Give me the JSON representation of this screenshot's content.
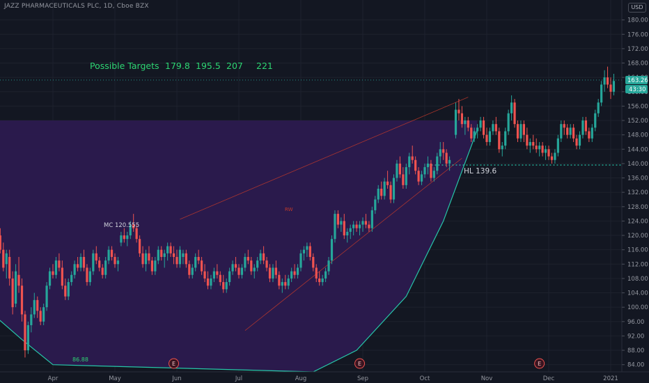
{
  "header": {
    "title": "JAZZ PHARMACEUTICALS PLC, 1D, Cboe BZX",
    "currency": "USD"
  },
  "colors": {
    "background": "#131722",
    "grid": "#1e222d",
    "up": "#26a69a",
    "down": "#ef5350",
    "zone_fill": "#2b1a4f",
    "curve": "#26c6a8",
    "wedge": "#c0392b",
    "targets_text": "#2ed573",
    "label_text": "#d1d4dc",
    "price_badge": "#26a69a"
  },
  "annotations": {
    "targets_label": "Possible Targets",
    "targets": [
      "179.8",
      "195.5",
      "207",
      "221"
    ],
    "mc_label": "MC 120.555",
    "rw_label": "RW",
    "hl_label": "HL 139.6",
    "low_label": "86.88",
    "earnings_marker": "E"
  },
  "price_badges": {
    "last": "163.26",
    "countdown": "43:30"
  },
  "chart_data": {
    "type": "candlestick",
    "title": "JAZZ PHARMACEUTICALS PLC, 1D, Cboe BZX",
    "ylim": [
      82,
      184
    ],
    "y_ticks": [
      84,
      88,
      92,
      96,
      100,
      104,
      108,
      112,
      116,
      120,
      124,
      128,
      132,
      136,
      140,
      144,
      148,
      152,
      156,
      160,
      164,
      168,
      172,
      176,
      180
    ],
    "x_ticks": [
      "Apr",
      "May",
      "Jun",
      "Jul",
      "Aug",
      "Sep",
      "Oct",
      "Nov",
      "Dec",
      "2021"
    ],
    "current_price": 163.26,
    "hl_level": 139.6,
    "targets": [
      179.8,
      195.5,
      207,
      221
    ],
    "earnings_month_positions": [
      1.95,
      4.95,
      7.85
    ],
    "wedge_upper": [
      [
        2.05,
        124.5
      ],
      [
        6.7,
        158.5
      ]
    ],
    "wedge_lower": [
      [
        3.1,
        93.5
      ],
      [
        6.6,
        141.5
      ]
    ],
    "zone_top": 152,
    "curve": [
      [
        -0.9,
        97
      ],
      [
        -0.5,
        91
      ],
      [
        0,
        84
      ],
      [
        4.2,
        82
      ],
      [
        4.9,
        88
      ],
      [
        5.7,
        103
      ],
      [
        6.3,
        124
      ],
      [
        6.85,
        149.5
      ]
    ],
    "candles": [
      [
        -0.9,
        123,
        125,
        119,
        120
      ],
      [
        -0.85,
        120,
        122,
        115,
        116
      ],
      [
        -0.8,
        116,
        118,
        110,
        111
      ],
      [
        -0.75,
        112,
        116,
        108,
        115
      ],
      [
        -0.7,
        114,
        116,
        106,
        108
      ],
      [
        -0.65,
        108,
        110,
        98,
        100
      ],
      [
        -0.6,
        101,
        112,
        100,
        110
      ],
      [
        -0.55,
        109,
        114,
        104,
        106
      ],
      [
        -0.5,
        106,
        108,
        96,
        98
      ],
      [
        -0.45,
        98,
        99,
        86,
        88
      ],
      [
        -0.4,
        88,
        96,
        87,
        95
      ],
      [
        -0.35,
        95,
        100,
        93,
        98
      ],
      [
        -0.3,
        98,
        104,
        97,
        102
      ],
      [
        -0.25,
        102,
        103,
        97,
        99
      ],
      [
        -0.2,
        99,
        100,
        95,
        96
      ],
      [
        -0.15,
        96,
        101,
        95,
        100
      ],
      [
        -0.1,
        100,
        107,
        99,
        106
      ],
      [
        -0.05,
        106,
        111,
        105,
        110
      ],
      [
        0.0,
        110,
        112,
        108,
        109
      ],
      [
        0.05,
        109,
        114,
        108,
        113
      ],
      [
        0.1,
        113,
        115,
        110,
        111
      ],
      [
        0.15,
        111,
        113,
        105,
        106
      ],
      [
        0.2,
        106,
        108,
        102,
        103
      ],
      [
        0.25,
        103,
        108,
        102,
        107
      ],
      [
        0.3,
        107,
        110,
        106,
        109
      ],
      [
        0.35,
        109,
        113,
        108,
        112
      ],
      [
        0.4,
        112,
        114,
        110,
        111
      ],
      [
        0.45,
        111,
        115,
        110,
        114
      ],
      [
        0.5,
        114,
        116,
        110,
        111
      ],
      [
        0.55,
        111,
        112,
        106,
        107
      ],
      [
        0.6,
        107,
        111,
        106,
        110
      ],
      [
        0.65,
        110,
        116,
        109,
        115
      ],
      [
        0.7,
        115,
        117,
        112,
        113
      ],
      [
        0.75,
        113,
        114,
        110,
        111
      ],
      [
        0.8,
        111,
        112,
        108,
        109
      ],
      [
        0.85,
        109,
        114,
        108,
        113
      ],
      [
        0.9,
        113,
        117,
        112,
        116
      ],
      [
        0.95,
        116,
        117,
        113,
        114
      ],
      [
        1.0,
        114,
        115,
        111,
        112
      ],
      [
        1.05,
        112,
        114,
        110,
        113
      ],
      [
        1.1,
        118,
        121,
        117,
        120
      ],
      [
        1.15,
        120,
        122,
        118,
        119
      ],
      [
        1.2,
        119,
        121,
        117,
        120
      ],
      [
        1.25,
        120,
        124,
        119,
        123
      ],
      [
        1.3,
        123,
        126,
        121,
        122
      ],
      [
        1.35,
        122,
        123,
        118,
        119
      ],
      [
        1.4,
        119,
        120,
        114,
        115
      ],
      [
        1.45,
        115,
        117,
        111,
        112
      ],
      [
        1.5,
        112,
        116,
        110,
        115
      ],
      [
        1.55,
        115,
        117,
        112,
        113
      ],
      [
        1.6,
        113,
        114,
        109,
        110
      ],
      [
        1.65,
        110,
        114,
        109,
        113
      ],
      [
        1.7,
        113,
        117,
        112,
        116
      ],
      [
        1.75,
        116,
        117,
        113,
        114
      ],
      [
        1.8,
        114,
        116,
        111,
        115
      ],
      [
        1.85,
        115,
        118,
        113,
        117
      ],
      [
        1.9,
        117,
        118,
        114,
        115
      ],
      [
        1.95,
        115,
        117,
        112,
        114
      ],
      [
        2.0,
        114,
        116,
        111,
        112
      ],
      [
        2.05,
        112,
        117,
        111,
        116
      ],
      [
        2.1,
        114,
        116,
        112,
        115
      ],
      [
        2.15,
        115,
        116,
        111,
        112
      ],
      [
        2.2,
        112,
        113,
        108,
        109
      ],
      [
        2.25,
        109,
        112,
        108,
        111
      ],
      [
        2.3,
        111,
        115,
        110,
        114
      ],
      [
        2.35,
        114,
        116,
        112,
        113
      ],
      [
        2.4,
        113,
        114,
        109,
        110
      ],
      [
        2.45,
        110,
        112,
        107,
        108
      ],
      [
        2.5,
        108,
        110,
        105,
        106
      ],
      [
        2.55,
        106,
        109,
        105,
        108
      ],
      [
        2.6,
        108,
        111,
        107,
        110
      ],
      [
        2.65,
        110,
        112,
        108,
        109
      ],
      [
        2.7,
        109,
        110,
        106,
        107
      ],
      [
        2.75,
        107,
        109,
        104,
        105
      ],
      [
        2.8,
        105,
        108,
        104,
        107
      ],
      [
        2.85,
        107,
        111,
        106,
        110
      ],
      [
        2.9,
        110,
        113,
        109,
        112
      ],
      [
        2.95,
        112,
        114,
        110,
        111
      ],
      [
        3.0,
        111,
        112,
        108,
        109
      ],
      [
        3.05,
        109,
        112,
        108,
        111
      ],
      [
        3.1,
        111,
        115,
        110,
        114
      ],
      [
        3.15,
        114,
        116,
        112,
        113
      ],
      [
        3.2,
        113,
        114,
        109,
        110
      ],
      [
        3.25,
        110,
        112,
        108,
        111
      ],
      [
        3.3,
        111,
        114,
        110,
        113
      ],
      [
        3.35,
        113,
        116,
        112,
        115
      ],
      [
        3.4,
        115,
        117,
        112,
        113
      ],
      [
        3.45,
        113,
        114,
        110,
        111
      ],
      [
        3.5,
        111,
        112,
        107,
        108
      ],
      [
        3.55,
        108,
        112,
        107,
        111
      ],
      [
        3.6,
        111,
        113,
        108,
        109
      ],
      [
        3.65,
        109,
        110,
        105,
        106
      ],
      [
        3.7,
        106,
        108,
        104,
        107
      ],
      [
        3.75,
        107,
        109,
        105,
        106
      ],
      [
        3.8,
        106,
        109,
        105,
        108
      ],
      [
        3.85,
        108,
        111,
        107,
        110
      ],
      [
        3.9,
        110,
        112,
        108,
        109
      ],
      [
        3.95,
        109,
        112,
        108,
        111
      ],
      [
        4.0,
        111,
        116,
        110,
        115
      ],
      [
        4.05,
        115,
        117,
        113,
        116
      ],
      [
        4.1,
        116,
        118,
        114,
        117
      ],
      [
        4.15,
        117,
        118,
        113,
        114
      ],
      [
        4.2,
        114,
        115,
        110,
        111
      ],
      [
        4.25,
        111,
        112,
        107,
        108
      ],
      [
        4.3,
        108,
        110,
        106,
        107
      ],
      [
        4.35,
        107,
        109,
        106,
        108
      ],
      [
        4.4,
        108,
        111,
        107,
        110
      ],
      [
        4.45,
        110,
        114,
        109,
        113
      ],
      [
        4.5,
        113,
        120,
        112,
        119
      ],
      [
        4.55,
        119,
        127,
        118,
        126
      ],
      [
        4.6,
        126,
        127,
        122,
        123
      ],
      [
        4.65,
        123,
        125,
        121,
        124
      ],
      [
        4.7,
        124,
        126,
        119,
        120
      ],
      [
        4.75,
        120,
        122,
        118,
        121
      ],
      [
        4.8,
        121,
        123,
        119,
        122
      ],
      [
        4.85,
        122,
        124,
        120,
        123
      ],
      [
        4.9,
        123,
        124,
        121,
        122
      ],
      [
        4.95,
        122,
        124,
        120,
        123
      ],
      [
        5.0,
        123,
        125,
        121,
        124
      ],
      [
        5.05,
        124,
        126,
        122,
        123
      ],
      [
        5.1,
        123,
        124,
        121,
        122
      ],
      [
        5.15,
        122,
        128,
        121,
        127
      ],
      [
        5.2,
        127,
        131,
        126,
        130
      ],
      [
        5.25,
        130,
        134,
        129,
        133
      ],
      [
        5.3,
        133,
        135,
        130,
        131
      ],
      [
        5.35,
        131,
        136,
        130,
        135
      ],
      [
        5.4,
        135,
        138,
        133,
        134
      ],
      [
        5.45,
        134,
        135,
        129,
        130
      ],
      [
        5.5,
        130,
        137,
        129,
        136
      ],
      [
        5.55,
        136,
        141,
        135,
        140
      ],
      [
        5.6,
        140,
        142,
        136,
        137
      ],
      [
        5.65,
        137,
        139,
        133,
        134
      ],
      [
        5.7,
        134,
        140,
        133,
        139
      ],
      [
        5.75,
        139,
        143,
        137,
        142
      ],
      [
        5.8,
        142,
        145,
        140,
        141
      ],
      [
        5.85,
        141,
        142,
        137,
        138
      ],
      [
        5.9,
        138,
        139,
        134,
        135
      ],
      [
        5.95,
        135,
        138,
        134,
        137
      ],
      [
        6.0,
        137,
        140,
        136,
        139
      ],
      [
        6.05,
        139,
        142,
        137,
        140
      ],
      [
        6.1,
        140,
        141,
        135,
        136
      ],
      [
        6.15,
        136,
        139,
        135,
        138
      ],
      [
        6.2,
        138,
        143,
        137,
        142
      ],
      [
        6.25,
        142,
        146,
        140,
        144
      ],
      [
        6.3,
        144,
        146,
        141,
        143
      ],
      [
        6.35,
        143,
        144,
        139,
        140
      ],
      [
        6.4,
        140,
        142,
        138,
        141
      ],
      [
        6.5,
        148,
        157,
        147,
        155
      ],
      [
        6.55,
        155,
        158,
        152,
        154
      ],
      [
        6.6,
        154,
        156,
        150,
        151
      ],
      [
        6.65,
        151,
        153,
        148,
        152
      ],
      [
        6.7,
        152,
        153,
        149,
        150
      ],
      [
        6.75,
        150,
        151,
        146,
        147
      ],
      [
        6.8,
        147,
        150,
        146,
        149
      ],
      [
        6.85,
        149,
        151,
        147,
        150
      ],
      [
        6.9,
        150,
        153,
        149,
        152
      ],
      [
        6.95,
        152,
        153,
        147,
        148
      ],
      [
        7.0,
        148,
        150,
        145,
        146
      ],
      [
        7.05,
        146,
        150,
        145,
        149
      ],
      [
        7.1,
        149,
        152,
        148,
        151
      ],
      [
        7.15,
        151,
        153,
        148,
        149
      ],
      [
        7.2,
        149,
        150,
        143,
        144
      ],
      [
        7.25,
        144,
        146,
        142,
        145
      ],
      [
        7.3,
        145,
        150,
        144,
        149
      ],
      [
        7.35,
        149,
        155,
        148,
        154
      ],
      [
        7.4,
        154,
        159,
        152,
        157
      ],
      [
        7.45,
        157,
        158,
        150,
        151
      ],
      [
        7.5,
        151,
        152,
        146,
        147
      ],
      [
        7.55,
        147,
        152,
        146,
        151
      ],
      [
        7.6,
        151,
        152,
        146,
        148
      ],
      [
        7.65,
        148,
        150,
        144,
        145
      ],
      [
        7.7,
        145,
        147,
        143,
        146
      ],
      [
        7.75,
        146,
        148,
        144,
        145
      ],
      [
        7.8,
        145,
        147,
        143,
        144
      ],
      [
        7.85,
        144,
        146,
        142,
        145
      ],
      [
        7.9,
        145,
        146,
        142,
        143
      ],
      [
        7.95,
        143,
        145,
        141,
        144
      ],
      [
        8.0,
        144,
        145,
        141,
        142
      ],
      [
        8.05,
        142,
        143,
        140,
        141
      ],
      [
        8.1,
        141,
        144,
        140,
        143
      ],
      [
        8.15,
        143,
        148,
        142,
        147
      ],
      [
        8.2,
        147,
        152,
        146,
        151
      ],
      [
        8.25,
        151,
        152,
        148,
        150
      ],
      [
        8.3,
        150,
        151,
        147,
        148
      ],
      [
        8.35,
        148,
        151,
        147,
        150
      ],
      [
        8.4,
        150,
        151,
        146,
        147
      ],
      [
        8.45,
        147,
        148,
        144,
        145
      ],
      [
        8.5,
        145,
        149,
        144,
        148
      ],
      [
        8.55,
        148,
        153,
        147,
        152
      ],
      [
        8.6,
        152,
        153,
        148,
        149
      ],
      [
        8.65,
        149,
        150,
        146,
        147
      ],
      [
        8.7,
        147,
        151,
        146,
        150
      ],
      [
        8.75,
        150,
        155,
        149,
        154
      ],
      [
        8.8,
        154,
        158,
        153,
        157
      ],
      [
        8.85,
        157,
        163,
        156,
        162
      ],
      [
        8.9,
        162,
        166,
        160,
        164
      ],
      [
        8.95,
        164,
        167,
        161,
        162
      ],
      [
        9.0,
        162,
        164,
        158,
        160
      ],
      [
        9.05,
        160,
        165,
        159,
        163
      ]
    ]
  }
}
